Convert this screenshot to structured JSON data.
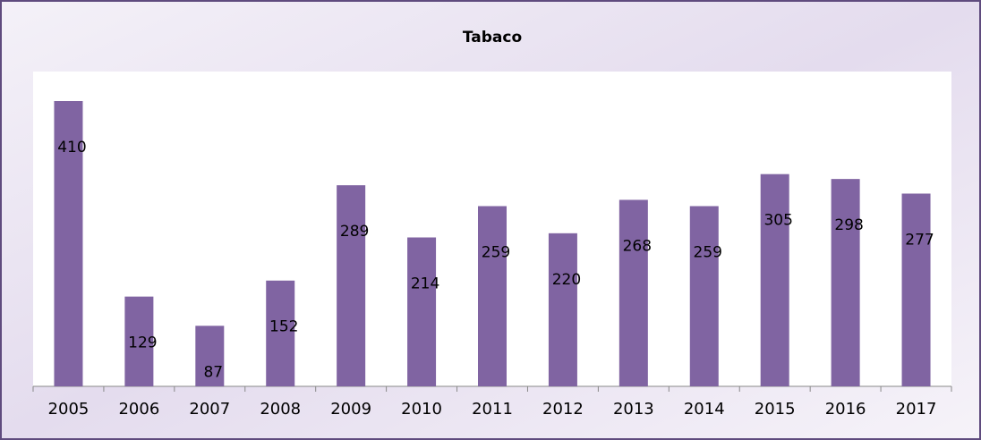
{
  "chart_data": {
    "type": "bar",
    "title": "Tabaco",
    "categories": [
      "2005",
      "2006",
      "2007",
      "2008",
      "2009",
      "2010",
      "2011",
      "2012",
      "2013",
      "2014",
      "2015",
      "2016",
      "2017"
    ],
    "values": [
      410,
      129,
      87,
      152,
      289,
      214,
      259,
      220,
      268,
      259,
      305,
      298,
      277
    ],
    "color": "#8064a2"
  }
}
